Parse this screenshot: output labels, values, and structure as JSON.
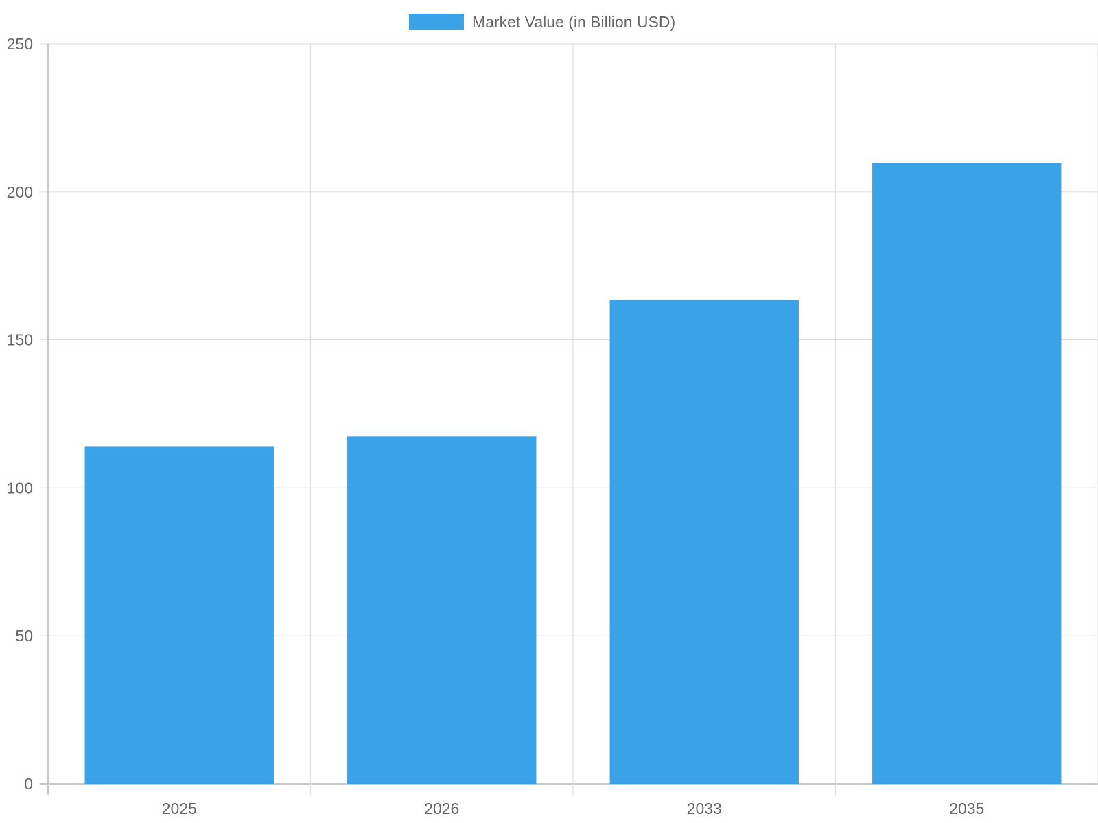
{
  "chart_data": {
    "type": "bar",
    "categories": [
      "2025",
      "2026",
      "2033",
      "2035"
    ],
    "series": [
      {
        "name": "Market Value (in Billion USD)",
        "values": [
          113.9,
          117.4,
          163.5,
          209.8
        ],
        "color": "#3aa3e8"
      }
    ],
    "ylim": [
      0,
      250
    ],
    "yticks": [
      0,
      50,
      100,
      150,
      200,
      250
    ],
    "grid": true,
    "legend": "top-center"
  },
  "colors": {
    "grid": "#e0e0e0",
    "axis": "#c8c8c8",
    "text": "#666666"
  }
}
